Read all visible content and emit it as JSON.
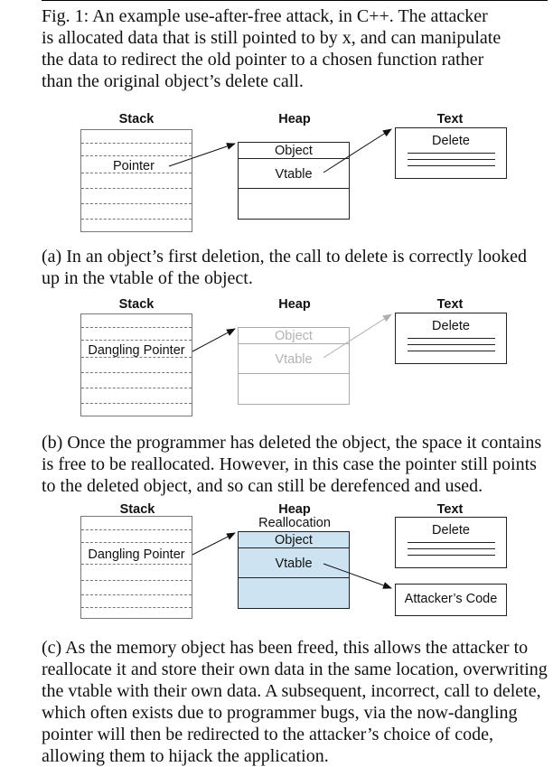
{
  "caption": {
    "lines": [
      "Fig. 1: An example use-after-free attack, in C++. The attacker",
      "is allocated data that is still pointed to by x, and can manipulate",
      "the data to redirect the old pointer to a chosen function rather",
      "than the original object’s delete call."
    ]
  },
  "panel_a": {
    "stack_label": "Stack",
    "heap_label": "Heap",
    "text_label": "Text",
    "pointer": "Pointer",
    "object": "Object",
    "vtable": "Vtable",
    "delete": "Delete",
    "sub_caption": [
      "(a) In an object’s first deletion, the call to delete is correctly looked",
      "up in the vtable of the object."
    ]
  },
  "panel_b": {
    "stack_label": "Stack",
    "heap_label": "Heap",
    "text_label": "Text",
    "pointer": "Dangling Pointer",
    "object": "Object",
    "vtable": "Vtable",
    "delete": "Delete",
    "sub_caption": [
      "(b) Once the programmer has deleted the object, the space it contains",
      "is free to be reallocated. However, in this case the pointer still points",
      "to the deleted object, and so can still be derefenced and used."
    ]
  },
  "panel_c": {
    "stack_label": "Stack",
    "heap_label": "Heap",
    "heap_sublabel": "Reallocation",
    "text_label": "Text",
    "pointer": "Dangling Pointer",
    "object": "Object",
    "vtable": "Vtable",
    "delete": "Delete",
    "attacker": "Attacker’s Code",
    "sub_caption": [
      "(c) As the memory object has been freed, this allows the attacker to",
      "reallocate it and store their own data in the same location, overwriting",
      "the vtable with their own data. A subsequent, incorrect, call to delete,",
      "which often exists due to programmer bugs, via the now-dangling",
      "pointer will then be redirected to the attacker’s choice of code,",
      "allowing them to hijack the application."
    ]
  }
}
